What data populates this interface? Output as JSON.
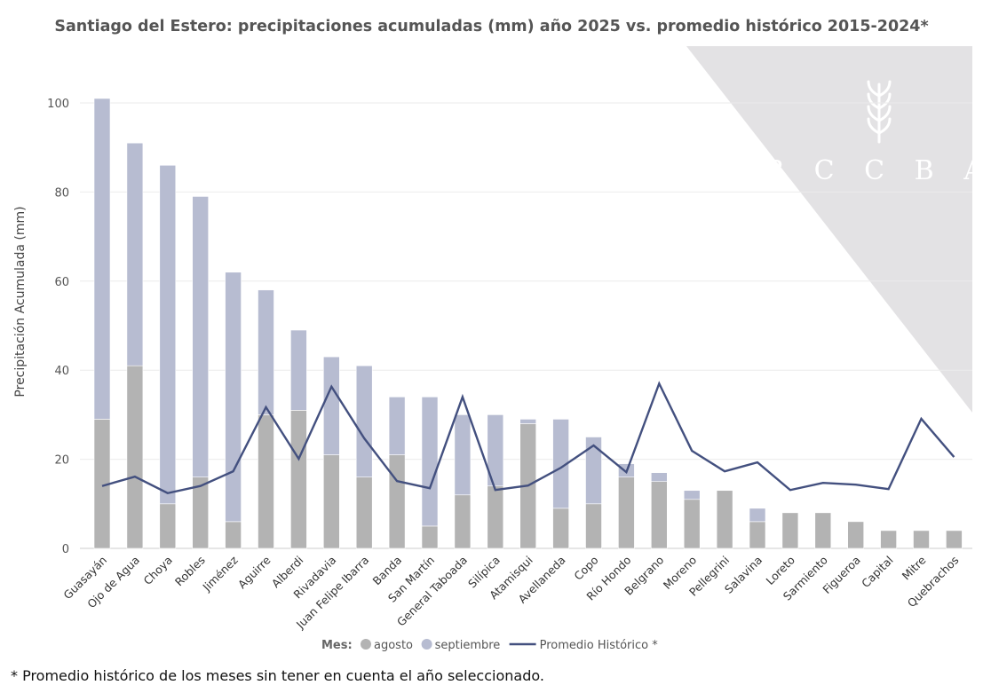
{
  "chart_data": {
    "type": "bar",
    "stacked": true,
    "title": "Santiago del Estero: precipitaciones acumuladas (mm) año 2025 vs. promedio histórico 2015-2024*",
    "xlabel": "",
    "ylabel": "Precipitación Acumulada (mm)",
    "ylim": [
      0,
      105
    ],
    "yticks": [
      0,
      20,
      40,
      60,
      80,
      100
    ],
    "grid": true,
    "legend_position": "bottom",
    "legend_title": "Mes:",
    "categories": [
      "Guasayán",
      "Ojo de Agua",
      "Choya",
      "Robles",
      "Jiménez",
      "Aguirre",
      "Alberdi",
      "Rivadavia",
      "Juan Felipe Ibarra",
      "Banda",
      "San Martín",
      "General Taboada",
      "Silípica",
      "Atamisqui",
      "Avellaneda",
      "Copo",
      "Río Hondo",
      "Belgrano",
      "Moreno",
      "Pellegrini",
      "Salavina",
      "Loreto",
      "Sarmiento",
      "Figueroa",
      "Capital",
      "Mitre",
      "Quebrachos"
    ],
    "series": [
      {
        "name": "agosto",
        "type": "bar",
        "color": "#b3b3b3",
        "values": [
          29,
          41,
          10,
          16,
          6,
          30,
          31,
          21,
          16,
          21,
          5,
          12,
          14,
          28,
          9,
          10,
          16,
          15,
          11,
          13,
          6,
          8,
          8,
          6,
          4,
          4,
          4
        ]
      },
      {
        "name": "septiembre",
        "type": "bar",
        "color": "#b7bcd1",
        "values": [
          72,
          50,
          76,
          63,
          56,
          28,
          18,
          22,
          25,
          13,
          29,
          18,
          16,
          1,
          20,
          15,
          3,
          2,
          2,
          0,
          3,
          0,
          0,
          0,
          0,
          0,
          0
        ]
      },
      {
        "name": "Promedio Histórico *",
        "type": "line",
        "color": "#43507f",
        "values": [
          14,
          16.1,
          12.4,
          14,
          17.3,
          31.7,
          20.1,
          36.3,
          24.7,
          15.1,
          13.5,
          34,
          13.1,
          14.1,
          18.1,
          23.1,
          17.1,
          37,
          21.9,
          17.3,
          19.3,
          13.1,
          14.7,
          14.3,
          13.3,
          29.1,
          20.5
        ]
      }
    ]
  },
  "footnote": "* Promedio histórico de los meses sin tener en cuenta el año seleccionado.",
  "watermark": {
    "text": "BCCBA",
    "color": "#e3e2e4"
  }
}
